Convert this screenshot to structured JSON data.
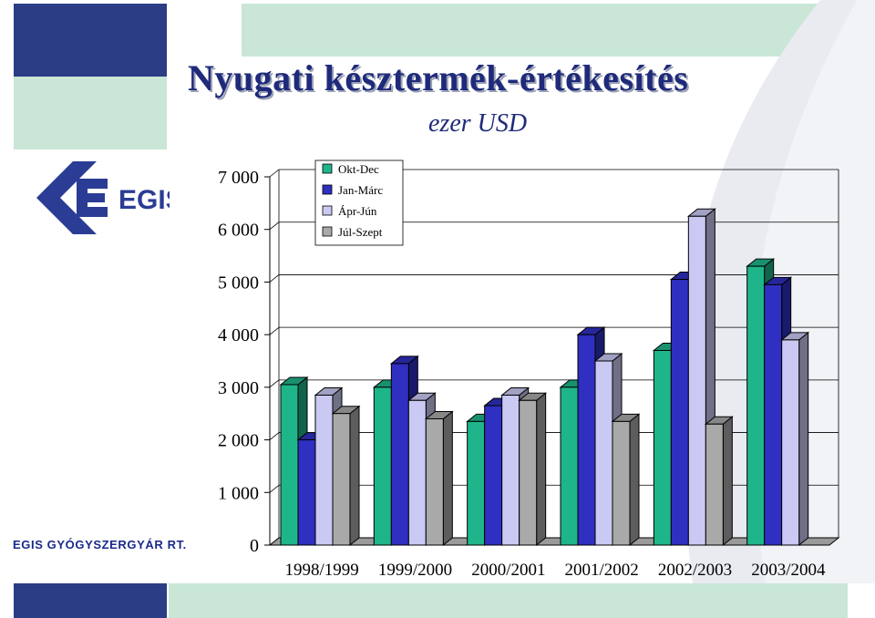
{
  "slide": {
    "title": "Nyugati késztermék-értékesítés",
    "subtitle": "ezer USD",
    "logo_text": "EGIS",
    "company": "EGIS GYÓGYSZERGYÁR RT."
  },
  "colors": {
    "navy": "#2a3d85",
    "mint": "#c9e6d6",
    "swoosh": "#e9ebf1",
    "logo_blue": "#2b3c94"
  },
  "chart_data": {
    "type": "bar",
    "title": "",
    "xlabel": "",
    "ylabel": "",
    "ylim": [
      0,
      7000
    ],
    "yticks": [
      0,
      1000,
      2000,
      3000,
      4000,
      5000,
      6000,
      7000
    ],
    "ytick_labels": [
      "0",
      "1 000",
      "2 000",
      "3 000",
      "4 000",
      "5 000",
      "6 000",
      "7 000"
    ],
    "categories": [
      "1998/1999",
      "1999/2000",
      "2000/2001",
      "2001/2002",
      "2002/2003",
      "2003/2004"
    ],
    "series": [
      {
        "name": "Okt-Dec",
        "color": "#1fb58a",
        "values": [
          3050,
          3000,
          2350,
          3000,
          3700,
          5300
        ]
      },
      {
        "name": "Jan-Márc",
        "color": "#2f2fc2",
        "values": [
          2000,
          3450,
          2650,
          4000,
          5050,
          4950
        ]
      },
      {
        "name": "Ápr-Jún",
        "color": "#c9c9f4",
        "values": [
          2850,
          2750,
          2850,
          3500,
          6250,
          3900
        ]
      },
      {
        "name": "Júl-Szept",
        "color": "#a9a9a9",
        "values": [
          2500,
          2400,
          2750,
          2350,
          2300,
          null
        ]
      }
    ],
    "grid": true,
    "legend_position": "top-left",
    "three_d": true
  }
}
